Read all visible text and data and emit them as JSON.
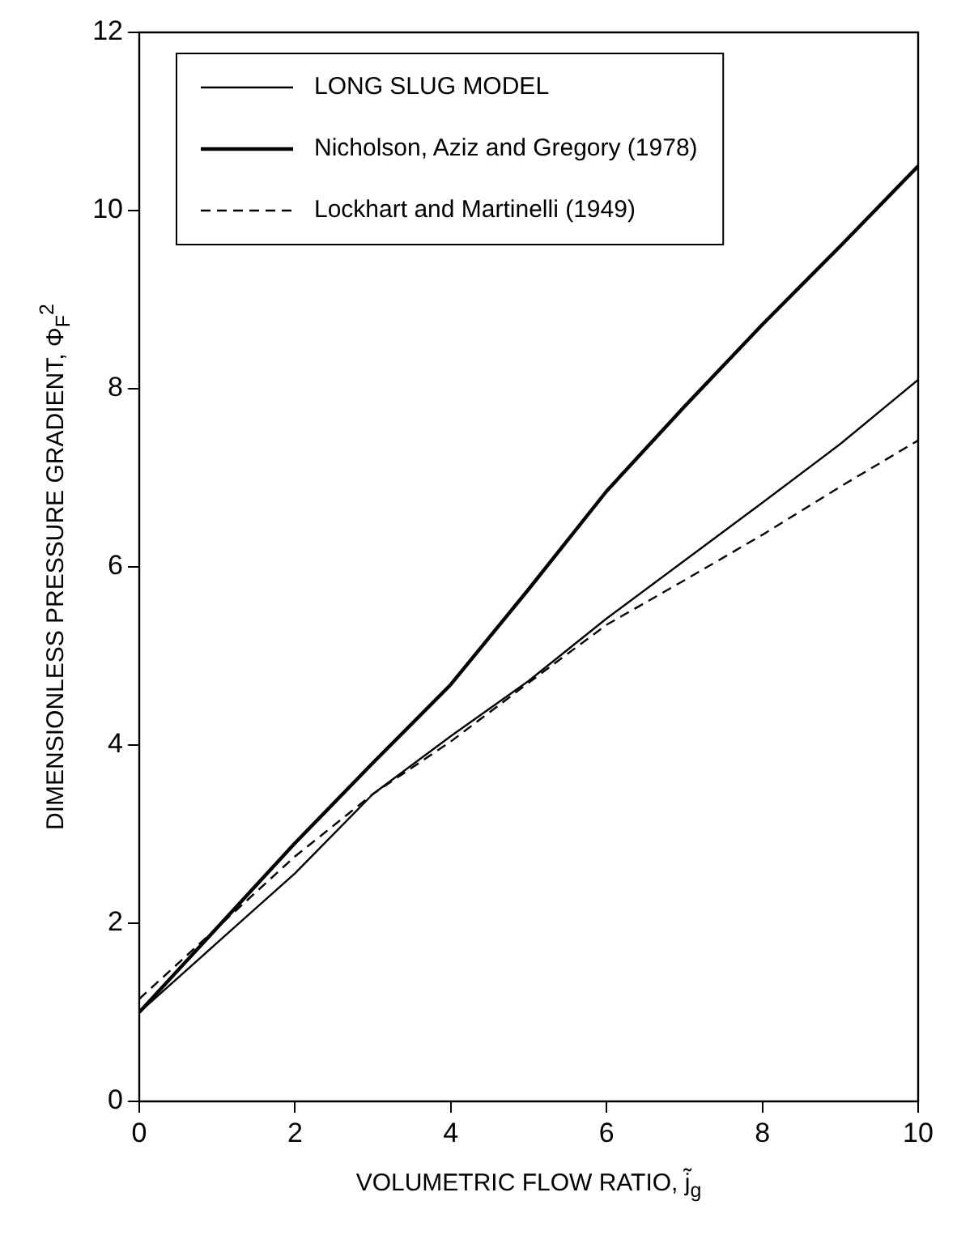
{
  "chart_data": {
    "type": "line",
    "xlabel": "VOLUMETRIC FLOW RATIO, j̃$_{g}$",
    "ylabel": "DIMENSIONLESS PRESSURE GRADIENT, Φ$_{F}$$^{2}$",
    "x": [
      0,
      1,
      2,
      3,
      4,
      5,
      6,
      7,
      8,
      9,
      10
    ],
    "series": [
      {
        "name": "LONG SLUG MODEL",
        "color": "#000000",
        "line_style": "solid",
        "values": [
          1.0,
          1.78,
          2.56,
          3.45,
          4.1,
          4.72,
          5.42,
          6.07,
          6.72,
          7.38,
          8.1
        ]
      },
      {
        "name": "Nicholson, Aziz and Gregory (1978)",
        "color": "#000000",
        "line_style": "solid",
        "values": [
          1.0,
          1.95,
          2.9,
          3.8,
          4.68,
          5.75,
          6.85,
          7.8,
          8.72,
          9.6,
          10.5
        ]
      },
      {
        "name": "Lockhart and Martinelli (1949)",
        "color": "#000000",
        "line_style": "dashed",
        "values": [
          1.15,
          1.95,
          2.75,
          3.45,
          4.04,
          4.7,
          5.35,
          5.85,
          6.36,
          6.9,
          7.42
        ]
      }
    ],
    "xlim": [
      0,
      10
    ],
    "xticks": [
      0,
      2,
      4,
      6,
      8,
      10
    ],
    "ylim": [
      0,
      12
    ],
    "yticks": [
      0,
      2,
      4,
      6,
      8,
      10,
      12
    ],
    "grid": false,
    "legend": "top left",
    "marker": "none"
  }
}
